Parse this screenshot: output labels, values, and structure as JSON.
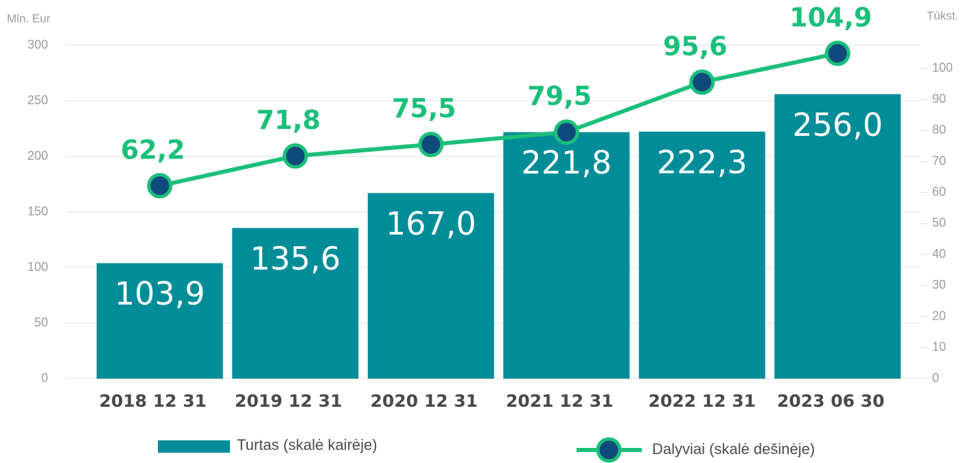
{
  "chart_data": {
    "type": "bar",
    "ylabel": "Mln. Eur",
    "y2label": "Tūkst.",
    "categories": [
      "2018 12 31",
      "2019 12 31",
      "2020 12 31",
      "2021 12 31",
      "2022 12 31",
      "2023 06 30"
    ],
    "series": [
      {
        "name": "Turtas (skalė kairėje)",
        "type": "bar",
        "color": "#008d98",
        "values": [
          103.9,
          135.6,
          167.0,
          221.8,
          222.3,
          256.0
        ],
        "value_labels": [
          "103,9",
          "135,6",
          "167,0",
          "221,8",
          "222,3",
          "256,0"
        ]
      },
      {
        "name": "Dalyviai (skalė dešinėje)",
        "type": "line",
        "axis": "y2",
        "color": "#1cbf7a",
        "marker_color": "#0f4a7c",
        "values": [
          62.2,
          71.8,
          75.5,
          79.5,
          95.6,
          104.9
        ],
        "value_labels": [
          "62,2",
          "71,8",
          "75,5",
          "79,5",
          "95,6",
          "104,9"
        ]
      }
    ],
    "ylim": [
      0,
      300
    ],
    "yticks": [
      0,
      50,
      100,
      150,
      200,
      250,
      300
    ],
    "y2lim": [
      0,
      107.5
    ],
    "y2ticks": [
      0,
      10,
      20,
      30,
      40,
      50,
      60,
      70,
      80,
      90,
      100
    ],
    "grid": true
  }
}
